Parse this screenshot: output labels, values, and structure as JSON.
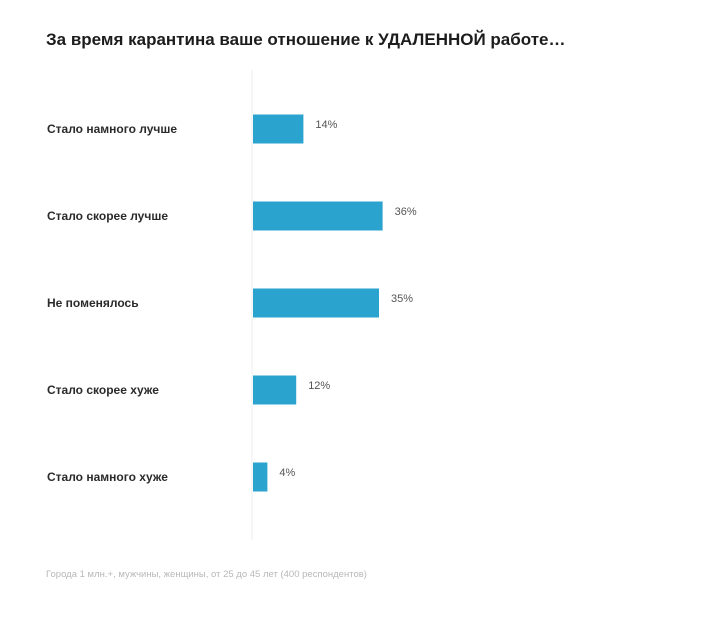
{
  "title": "За время карантина ваше отношение к УДАЛЕННОЙ работе…",
  "footnote": "Города 1 млн.+, мужчины, женщины, от 25 до 45 лет (400 респондентов)",
  "colors": {
    "bar": "#2aa3cf",
    "axis": "#ececec"
  },
  "chart_data": {
    "type": "bar",
    "orientation": "horizontal",
    "categories": [
      "Стало намного лучше",
      "Стало скорее лучше",
      "Не поменялось",
      "Стало скорее хуже",
      "Стало намного хуже"
    ],
    "values": [
      14,
      36,
      35,
      12,
      4
    ],
    "value_labels": [
      "14%",
      "36%",
      "35%",
      "12%",
      "4%"
    ],
    "unit": "%",
    "xlim": [
      0,
      100
    ],
    "grid": false,
    "legend": "none"
  }
}
